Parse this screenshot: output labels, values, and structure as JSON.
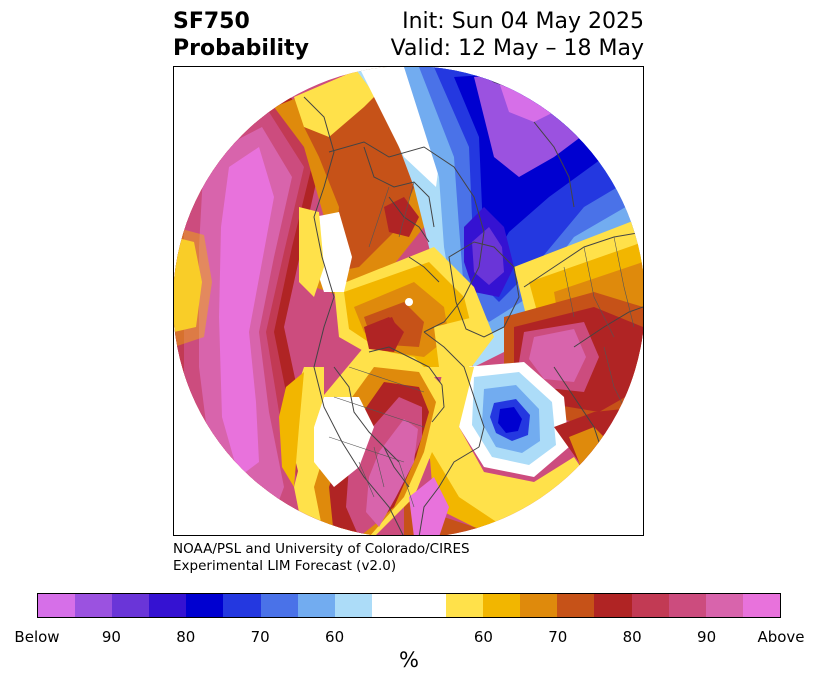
{
  "title": {
    "line1_left": "SF750",
    "line2_left": "Probability",
    "line1_right": "Init: Sun 04 May 2025",
    "line2_right": "Valid: 12 May – 18 May"
  },
  "credit": {
    "line1": "NOAA/PSL and University of Colorado/CIRES",
    "line2": "Experimental LIM Forecast (v2.0)"
  },
  "colorbar": {
    "colors": [
      "#d66fe8",
      "#9b52e0",
      "#6a35d8",
      "#3512d2",
      "#0000d0",
      "#2438e0",
      "#4a72e8",
      "#72acf0",
      "#acdcf8",
      "#ffffff",
      "#ffffff",
      "#ffe14a",
      "#f2b600",
      "#df8a0c",
      "#c65218",
      "#b02424",
      "#c23a54",
      "#cc4c7e",
      "#d864ac",
      "#e872dc"
    ],
    "ticks": [
      {
        "label": "Below"
      },
      {
        "label": "90"
      },
      {
        "label": "80"
      },
      {
        "label": "70"
      },
      {
        "label": "60"
      },
      {
        "label": "60"
      },
      {
        "label": "70"
      },
      {
        "label": "80"
      },
      {
        "label": "90"
      },
      {
        "label": "Above"
      }
    ],
    "unit": "%"
  },
  "map": {
    "projection": "north-polar-stereographic",
    "field_colors": {
      "above_max": "#e872dc",
      "above_90": "#d864ac",
      "above_85": "#cc4c7e",
      "above_80": "#c23a54",
      "above_75": "#b02424",
      "above_70": "#c65218",
      "above_65": "#df8a0c",
      "above_60": "#f2b600",
      "above_55": "#ffe14a",
      "neutral": "#ffffff",
      "below_55": "#acdcf8",
      "below_60": "#72acf0",
      "below_65": "#4a72e8",
      "below_70": "#2438e0",
      "below_75": "#0000d0",
      "below_80": "#3512d2",
      "below_85": "#6a35d8",
      "below_90": "#9b52e0",
      "below_max": "#d66fe8"
    }
  }
}
